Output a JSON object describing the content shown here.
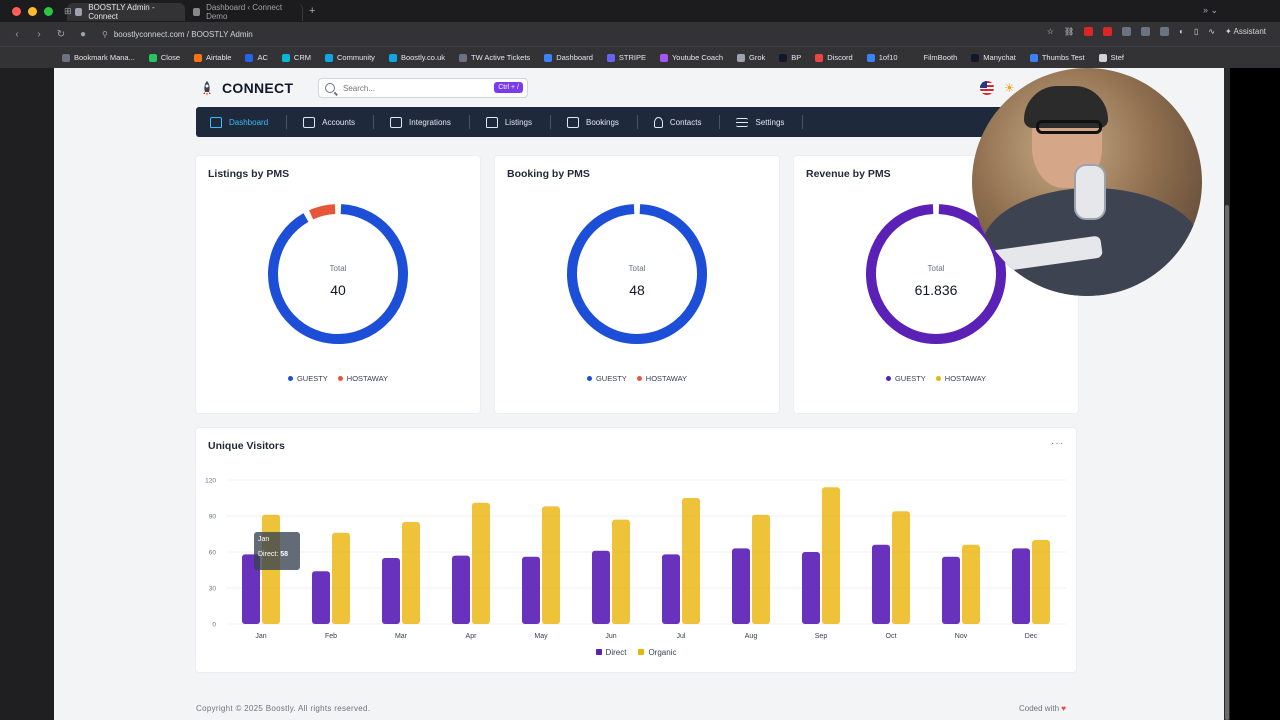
{
  "browser": {
    "tabs": [
      {
        "label": "BOOSTLY Admin - Connect",
        "active": true
      },
      {
        "label": "Dashboard ‹ Connect Demo",
        "active": false
      }
    ],
    "url": "boostlyconnect.com / BOOSTLY Admin",
    "assistant_label": "Assistant",
    "bookmarks": [
      {
        "label": "Bookmark Mana...",
        "color": "#6b7280"
      },
      {
        "label": "Close",
        "color": "#22c55e"
      },
      {
        "label": "Airtable",
        "color": "#f97316"
      },
      {
        "label": "AC",
        "color": "#2563eb"
      },
      {
        "label": "CRM",
        "color": "#06b6d4"
      },
      {
        "label": "Community",
        "color": "#0ea5e9"
      },
      {
        "label": "Boostly.co.uk",
        "color": "#0ea5e9"
      },
      {
        "label": "TW Active Tickets",
        "color": "#6b7280"
      },
      {
        "label": "Dashboard",
        "color": "#3b82f6"
      },
      {
        "label": "STRIPE",
        "color": "#6366f1"
      },
      {
        "label": "Youtube Coach",
        "color": "#a855f7"
      },
      {
        "label": "Grok",
        "color": "#9ca3af"
      },
      {
        "label": "BP",
        "color": "#111827"
      },
      {
        "label": "Discord",
        "color": "#ef4444"
      },
      {
        "label": "1of10",
        "color": "#3b82f6"
      },
      {
        "label": "FilmBooth",
        "color": "#333336"
      },
      {
        "label": "Manychat",
        "color": "#111827"
      },
      {
        "label": "Thumbs Test",
        "color": "#3b82f6"
      },
      {
        "label": "Stef",
        "color": "#d1d5db"
      }
    ]
  },
  "app": {
    "brand": "CONNECT",
    "search_placeholder": "Search...",
    "search_shortcut": "Ctrl + /",
    "nav": [
      {
        "label": "Dashboard",
        "icon": "home-icon",
        "active": true
      },
      {
        "label": "Accounts",
        "icon": "building-icon",
        "active": false
      },
      {
        "label": "Integrations",
        "icon": "cube-icon",
        "active": false
      },
      {
        "label": "Listings",
        "icon": "house-icon",
        "active": false
      },
      {
        "label": "Bookings",
        "icon": "book-icon",
        "active": false
      },
      {
        "label": "Contacts",
        "icon": "person-icon",
        "active": false
      },
      {
        "label": "Settings",
        "icon": "menu-icon",
        "active": false
      }
    ]
  },
  "cards": [
    {
      "title": "Listings by PMS",
      "total_label": "Total",
      "total_value": "40",
      "segments": [
        {
          "name": "GUESTY",
          "value": 37,
          "color": "#1d4ed8"
        },
        {
          "name": "HOSTAWAY",
          "value": 3,
          "color": "#e8563a"
        }
      ]
    },
    {
      "title": "Booking by PMS",
      "total_label": "Total",
      "total_value": "48",
      "segments": [
        {
          "name": "GUESTY",
          "value": 48,
          "color": "#1d4ed8"
        },
        {
          "name": "HOSTAWAY",
          "value": 0,
          "color": "#e8563a"
        }
      ]
    },
    {
      "title": "Revenue by PMS",
      "total_label": "Total",
      "total_value": "61.836",
      "segments": [
        {
          "name": "GUESTY",
          "value": 61.836,
          "color": "#5b21b6"
        },
        {
          "name": "HOSTAWAY",
          "value": 0,
          "color": "#eab308"
        }
      ]
    }
  ],
  "chart_data": {
    "type": "bar",
    "title": "Unique Visitors",
    "categories": [
      "Jan",
      "Feb",
      "Mar",
      "Apr",
      "May",
      "Jun",
      "Jul",
      "Aug",
      "Sep",
      "Oct",
      "Nov",
      "Dec"
    ],
    "series": [
      {
        "name": "Direct",
        "color": "#5b21b6",
        "values": [
          58,
          44,
          55,
          57,
          56,
          61,
          58,
          63,
          60,
          66,
          56,
          63
        ]
      },
      {
        "name": "Organic",
        "color": "#eab308",
        "values": [
          91,
          76,
          85,
          101,
          98,
          87,
          105,
          91,
          114,
          94,
          66,
          70
        ]
      }
    ],
    "ylim": [
      0,
      120
    ],
    "yticks": [
      0,
      30,
      60,
      90,
      120
    ],
    "legend": "bottom",
    "grid": true,
    "tooltip": {
      "month": "Jan",
      "label": "Direct:",
      "value": "58"
    }
  },
  "footer": {
    "copyright": "Copyright © 2025 Boostly. All rights reserved.",
    "coded_with": "Coded with"
  }
}
